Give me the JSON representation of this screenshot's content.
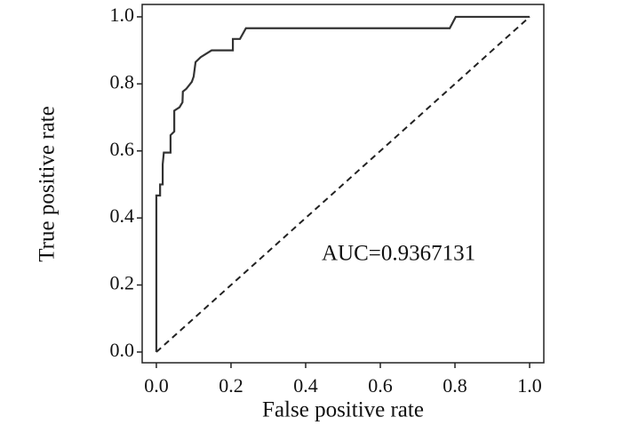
{
  "chart_data": {
    "type": "line",
    "x_label": "False positive rate",
    "y_label": "True positive rate",
    "annotation": "AUC=0.9367131",
    "xlim": [
      -0.038,
      1.038
    ],
    "ylim": [
      -0.032,
      1.037
    ],
    "xticks": [
      {
        "value": 0,
        "label": "0.0"
      },
      {
        "value": 0.2,
        "label": "0.2"
      },
      {
        "value": 0.4,
        "label": "0.4"
      },
      {
        "value": 0.6,
        "label": "0.6"
      },
      {
        "value": 0.8,
        "label": "0.8"
      },
      {
        "value": 1,
        "label": "1.0"
      }
    ],
    "yticks": [
      {
        "value": 0,
        "label": "0.0"
      },
      {
        "value": 0.2,
        "label": "0.2"
      },
      {
        "value": 0.4,
        "label": "0.4"
      },
      {
        "value": 0.6,
        "label": "0.6"
      },
      {
        "value": 0.8,
        "label": "0.8"
      },
      {
        "value": 1,
        "label": "1.0"
      }
    ],
    "series": [
      {
        "color": "#333333",
        "x": [
          0,
          0,
          0.01,
          0.01,
          0.017,
          0.017,
          0.02,
          0.038,
          0.038,
          0.048,
          0.048,
          0.062,
          0.07,
          0.071,
          0.08,
          0.095,
          0.1,
          0.105,
          0.119,
          0.148,
          0.205,
          0.205,
          0.224,
          0.24,
          0.786,
          0.802,
          1
        ],
        "values": [
          0,
          0.467,
          0.467,
          0.5,
          0.5,
          0.56,
          0.595,
          0.595,
          0.647,
          0.658,
          0.72,
          0.73,
          0.745,
          0.777,
          0.785,
          0.806,
          0.822,
          0.865,
          0.88,
          0.9,
          0.9,
          0.934,
          0.934,
          0.966,
          0.966,
          1,
          1
        ]
      }
    ],
    "reference_line": {
      "x": [
        0,
        1
      ],
      "y": [
        0,
        1
      ],
      "color": "#222222"
    }
  }
}
